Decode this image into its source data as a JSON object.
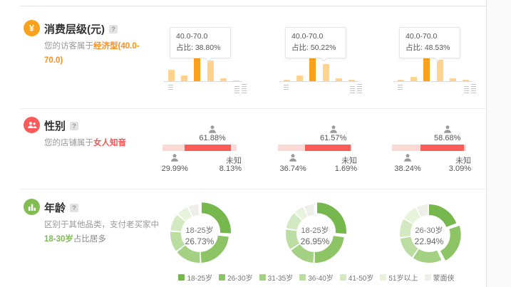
{
  "colors": {
    "orange_accent": "#ff8d1a",
    "orange_circle": "#faa21e",
    "bar_light": "#ffd28d",
    "bar_highlight": "#faa21e",
    "red_accent": "#fa5454",
    "red_circle": "#fa5a5a",
    "gender_dark": "#fb5c56",
    "gender_light": "#fbd9d7",
    "green_accent": "#7cbb4f",
    "green_circle": "#82bd51"
  },
  "sections": {
    "consumption": {
      "title": "消费层级(元)",
      "help": "?",
      "icon_glyph": "¥",
      "desc_prefix": "您的访客属于",
      "desc_highlight": "经济型(40.0-70.0)"
    },
    "gender": {
      "title": "性别",
      "help": "?",
      "desc_prefix": "您的店铺属于",
      "desc_highlight": "女人知音"
    },
    "age": {
      "title": "年龄",
      "help": "?",
      "desc_line1": "区别于其他品类，支付老买家中",
      "desc_highlight": "18-30岁",
      "desc_suffix": "占比居多"
    }
  },
  "chart_data": [
    {
      "type": "bar",
      "section": "消费层级(元)",
      "bar_color": "#ffd28d",
      "highlight_color": "#faa21e",
      "charts": [
        {
          "tooltip": {
            "range": "40.0-70.0",
            "label": "占比:",
            "value": "38.80%"
          },
          "values": [
            48,
            24,
            100,
            85,
            12,
            4
          ],
          "highlight_index": 2
        },
        {
          "tooltip": {
            "range": "40.0-70.0",
            "label": "占比:",
            "value": "50.22%"
          },
          "values": [
            7,
            23,
            100,
            70,
            11,
            5
          ],
          "highlight_index": 2
        },
        {
          "tooltip": {
            "range": "40.0-70.0",
            "label": "占比:",
            "value": "48.53%"
          },
          "values": [
            6,
            18,
            100,
            87,
            13,
            5
          ],
          "highlight_index": 2
        }
      ]
    },
    {
      "type": "stacked-bar",
      "section": "性别",
      "segment_colors": [
        "#fbd9d7",
        "#fb5c56",
        "#fbd9d7"
      ],
      "charts": [
        {
          "male": 29.99,
          "female": 61.88,
          "unknown": 8.13,
          "male_label": "29.99%",
          "female_label": "61.88%",
          "unknown_title": "未知",
          "unknown_label": "8.13%"
        },
        {
          "male": 36.74,
          "female": 61.57,
          "unknown": 1.69,
          "male_label": "36.74%",
          "female_label": "61.57%",
          "unknown_title": "未知",
          "unknown_label": "1.69%"
        },
        {
          "male": 38.24,
          "female": 58.68,
          "unknown": 3.09,
          "male_label": "38.24%",
          "female_label": "58.68%",
          "unknown_title": "未知",
          "unknown_label": "3.09%"
        }
      ]
    },
    {
      "type": "donut",
      "section": "年龄",
      "palette": [
        "#76b84d",
        "#8cc466",
        "#a4d184",
        "#bcdda2",
        "#d3e9c1",
        "#e7f3da",
        "#efefe9"
      ],
      "legend": [
        "18-25岁",
        "26-30岁",
        "31-35岁",
        "36-40岁",
        "41-50岁",
        "51岁以上",
        "蒙面侠"
      ],
      "charts": [
        {
          "center_label": "18-25岁",
          "center_value": "26.73%",
          "values": [
            26.73,
            23,
            15,
            12,
            10,
            7,
            6.27
          ],
          "highlight_index": 0
        },
        {
          "center_label": "18-25岁",
          "center_value": "26.95%",
          "values": [
            26.95,
            24,
            15,
            12,
            10,
            6,
            6.05
          ],
          "highlight_index": 0
        },
        {
          "center_label": "26-30岁",
          "center_value": "22.94%",
          "values": [
            20,
            22.94,
            17,
            13,
            11,
            9,
            7.06
          ],
          "highlight_index": 1
        }
      ]
    }
  ]
}
